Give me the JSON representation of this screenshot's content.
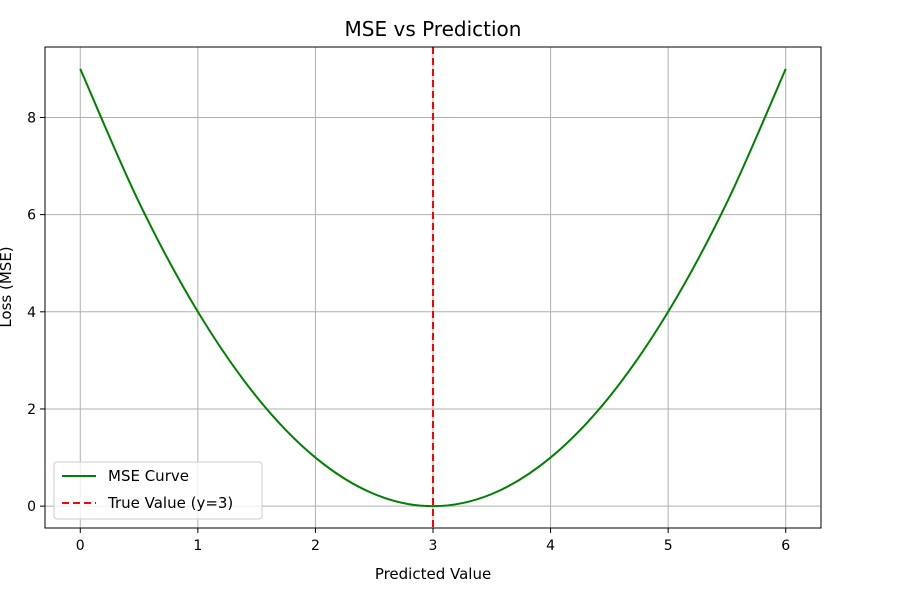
{
  "chart_data": {
    "type": "line",
    "title": "MSE vs Prediction",
    "xlabel": "Predicted Value",
    "ylabel": "Loss (MSE)",
    "xlim": [
      -0.3,
      6.3
    ],
    "ylim": [
      -0.45,
      9.45
    ],
    "xticks": [
      0,
      1,
      2,
      3,
      4,
      5,
      6
    ],
    "yticks": [
      0,
      2,
      4,
      6,
      8
    ],
    "grid": true,
    "legend_position": "lower-left",
    "series": [
      {
        "name": "MSE Curve",
        "color": "#008000",
        "style": "solid",
        "x": [
          0,
          0.5,
          1,
          1.5,
          2,
          2.5,
          3,
          3.5,
          4,
          4.5,
          5,
          5.5,
          6
        ],
        "y": [
          9,
          6.25,
          4,
          2.25,
          1,
          0.25,
          0,
          0.25,
          1,
          2.25,
          4,
          6.25,
          9
        ]
      },
      {
        "name": "True Value (y=3)",
        "color": "#ff0000",
        "style": "dashed",
        "vline_x": 3
      }
    ]
  }
}
